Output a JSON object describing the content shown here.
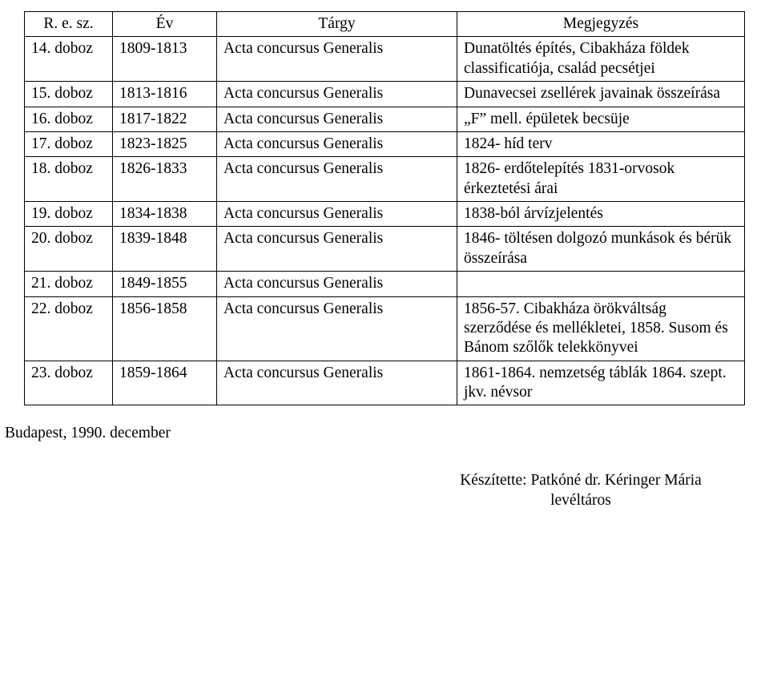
{
  "table": {
    "headers": [
      "R. e. sz.",
      "Év",
      "Tárgy",
      "Megjegyzés"
    ],
    "rows": [
      [
        "14. doboz",
        "1809-1813",
        "Acta concursus Generalis",
        "Dunatöltés építés, Cibakháza földek classificatiója, család pecsétjei"
      ],
      [
        "15. doboz",
        "1813-1816",
        "Acta concursus Generalis",
        "Dunavecsei zsellérek javainak összeírása"
      ],
      [
        "16. doboz",
        "1817-1822",
        "Acta concursus Generalis",
        "„F” mell. épületek becsüje"
      ],
      [
        "17. doboz",
        "1823-1825",
        "Acta concursus Generalis",
        "1824- híd terv"
      ],
      [
        "18. doboz",
        "1826-1833",
        "Acta concursus Generalis",
        "1826- erdőtelepítés 1831-orvosok érkeztetési árai"
      ],
      [
        "19. doboz",
        "1834-1838",
        "Acta concursus Generalis",
        "1838-ból árvízjelentés"
      ],
      [
        "20. doboz",
        "1839-1848",
        "Acta concursus Generalis",
        "1846- töltésen dolgozó munkások és bérük összeírása"
      ],
      [
        "21. doboz",
        "1849-1855",
        "Acta concursus Generalis",
        ""
      ],
      [
        "22. doboz",
        "1856-1858",
        "Acta concursus Generalis",
        "1856-57. Cibakháza örökváltság szerződése és mellékletei, 1858. Susom és Bánom szőlők telekkönyvei"
      ],
      [
        "23. doboz",
        "1859-1864",
        "Acta concursus Generalis",
        "1861-1864. nemzetség táblák 1864. szept. jkv. névsor"
      ]
    ]
  },
  "footer": {
    "left": "Budapest, 1990. december",
    "right_line1": "Készítette: Patkóné dr. Kéringer Mária",
    "right_line2": "levéltáros"
  }
}
